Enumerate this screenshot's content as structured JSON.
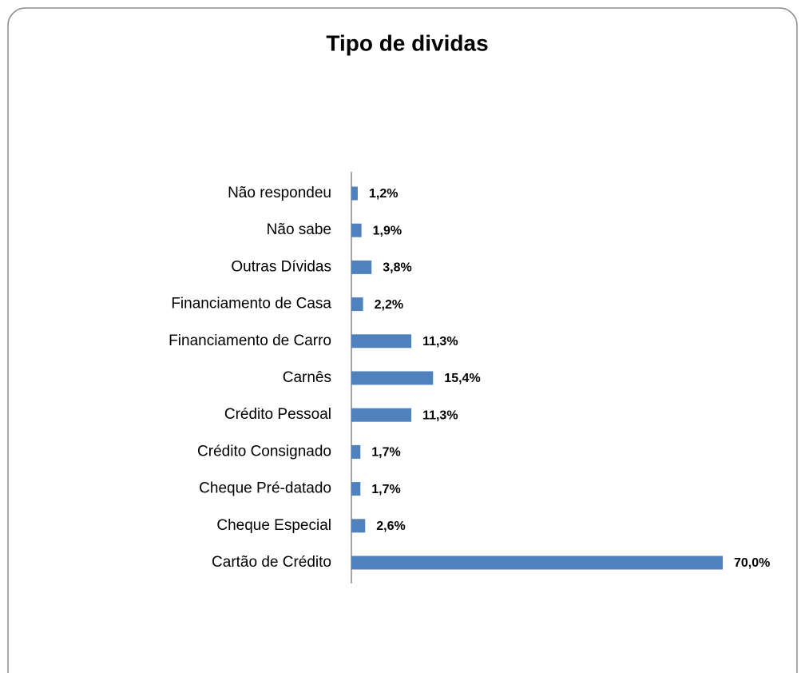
{
  "chart_data": {
    "type": "bar",
    "orientation": "horizontal",
    "title": "Tipo de dividas",
    "categories": [
      "Não respondeu",
      "Não sabe",
      "Outras Dívidas",
      "Financiamento de Casa",
      "Financiamento de Carro",
      "Carnês",
      "Crédito Pessoal",
      "Crédito Consignado",
      "Cheque Pré-datado",
      "Cheque Especial",
      "Cartão de Crédito"
    ],
    "values": [
      1.2,
      1.9,
      3.8,
      2.2,
      11.3,
      15.4,
      11.3,
      1.7,
      1.7,
      2.6,
      70.0
    ],
    "value_labels": [
      "1,2%",
      "1,9%",
      "3,8%",
      "2,2%",
      "11,3%",
      "15,4%",
      "11,3%",
      "1,7%",
      "1,7%",
      "2,6%",
      "70,0%"
    ],
    "color": "#4f81bd"
  }
}
